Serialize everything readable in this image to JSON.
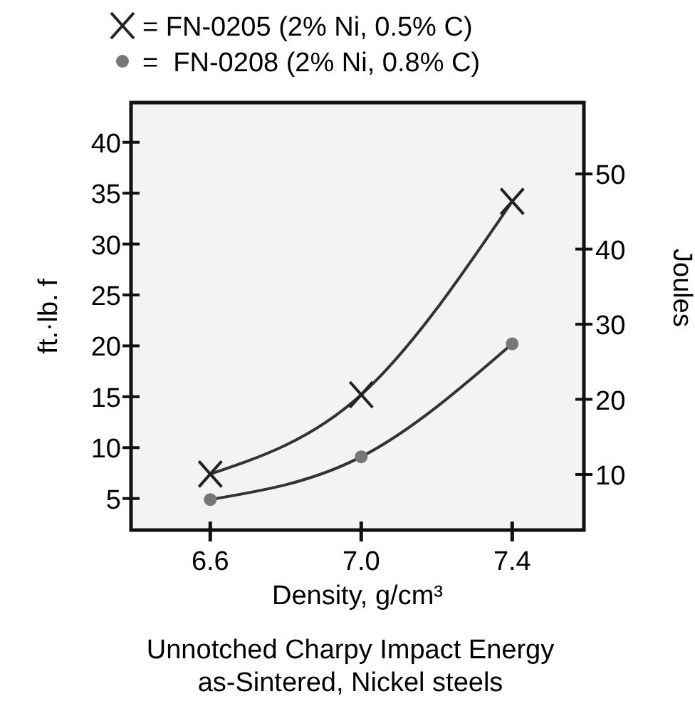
{
  "chart_data": {
    "type": "line",
    "title": "Unnotched Charpy Impact Energy\nas-Sintered, Nickel steels",
    "xlabel": "Density, g/cm³",
    "ylabel": "ft.·lb. f",
    "y2label": "Joules",
    "x": [
      6.6,
      7.0,
      7.4
    ],
    "series": [
      {
        "name": "= FN-0205 (2% Ni, 0.5% C)",
        "color": "#222222",
        "marker": "cross",
        "values": [
          7.4,
          15.2,
          34.2
        ]
      },
      {
        "name": "=  FN-0208 (2% Ni, 0.8% C)",
        "color": "#777777",
        "marker": "circle",
        "values": [
          4.9,
          9.1,
          20.2
        ]
      }
    ],
    "xlim": [
      6.39,
      7.59
    ],
    "xticks": [
      {
        "value": 6.6,
        "label": "6.6"
      },
      {
        "value": 7.0,
        "label": "7.0"
      },
      {
        "value": 7.4,
        "label": "7.4"
      }
    ],
    "ylim": [
      1.9,
      43.9
    ],
    "yticks": [
      5,
      10,
      15,
      20,
      25,
      30,
      35,
      40
    ],
    "y2lim": [
      2.6,
      59.5
    ],
    "y2ticks": [
      10,
      20,
      30,
      40,
      50
    ],
    "legend": "top",
    "grid": false
  }
}
